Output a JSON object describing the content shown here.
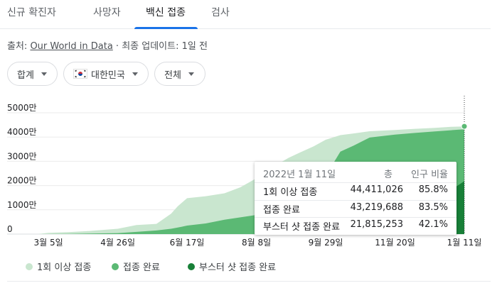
{
  "tabs": [
    {
      "label": "신규 확진자"
    },
    {
      "label": "사망자"
    },
    {
      "label": "백신 접종"
    },
    {
      "label": "검사"
    }
  ],
  "source": {
    "prefix": "출처: ",
    "link": "Our World in Data",
    "suffix": " · 최종 업데이트: 1일 전"
  },
  "filters": {
    "metric": "합계",
    "region": "대한민국",
    "range": "전체"
  },
  "colors": {
    "first_dose": "#c9e6cf",
    "fully": "#5bb974",
    "booster": "#188038",
    "accent": "#1a73e8"
  },
  "chart_data": {
    "type": "area",
    "x": [
      "2021-02-26",
      "2021-03-05",
      "2021-03-20",
      "2021-04-05",
      "2021-04-26",
      "2021-05-10",
      "2021-05-25",
      "2021-06-05",
      "2021-06-10",
      "2021-06-17",
      "2021-07-01",
      "2021-07-15",
      "2021-07-27",
      "2021-08-08",
      "2021-08-20",
      "2021-09-01",
      "2021-09-10",
      "2021-09-20",
      "2021-09-29",
      "2021-10-10",
      "2021-10-20",
      "2021-11-01",
      "2021-11-20",
      "2021-12-05",
      "2021-12-20",
      "2022-01-01",
      "2022-01-11"
    ],
    "series": [
      {
        "name": "1회 이상 접종",
        "values": [
          0.1,
          0.5,
          0.8,
          1.3,
          2.2,
          3.7,
          4.2,
          8.4,
          11.5,
          14.8,
          15.6,
          16.8,
          19.3,
          23.0,
          27.5,
          31.4,
          33.7,
          36.2,
          38.9,
          40.8,
          41.5,
          42.4,
          42.9,
          43.4,
          43.8,
          44.2,
          44.4
        ]
      },
      {
        "name": "접종 완료",
        "values": [
          0.0,
          0.0,
          0.1,
          0.2,
          0.4,
          0.9,
          1.5,
          2.2,
          2.7,
          3.5,
          4.4,
          5.9,
          6.9,
          7.9,
          9.4,
          11.1,
          13.5,
          18.0,
          24.0,
          34.0,
          36.5,
          39.8,
          41.0,
          41.7,
          42.3,
          42.8,
          43.2
        ]
      },
      {
        "name": "부스터 샷 접종 완료",
        "values": [
          0,
          0,
          0,
          0,
          0,
          0,
          0,
          0,
          0,
          0,
          0,
          0,
          0,
          0,
          0,
          0,
          0,
          0,
          0,
          0,
          0.6,
          1.2,
          3.5,
          7.5,
          13.0,
          18.2,
          21.8
        ]
      }
    ],
    "y_unit": "만 명",
    "ylim": [
      0,
      5000
    ],
    "yticks": [
      "0",
      "1000만",
      "2000만",
      "3000만",
      "4000만",
      "5000만"
    ],
    "xticks": [
      "3월 5일",
      "4월 26일",
      "6월 17일",
      "8월 8일",
      "9월 29일",
      "11월 20일",
      "1월 11일"
    ],
    "grid": true,
    "legend": "bottom-left"
  },
  "tooltip": {
    "date": "2022년 1월 11일",
    "col_total": "총",
    "col_pct": "인구 비율",
    "rows": [
      {
        "label": "1회 이상 접종",
        "total": "44,411,026",
        "pct": "85.8%"
      },
      {
        "label": "접종 완료",
        "total": "43,219,688",
        "pct": "83.5%"
      },
      {
        "label": "부스터 샷 접종 완료",
        "total": "21,815,253",
        "pct": "42.1%"
      }
    ]
  },
  "legend": [
    {
      "label": "1회 이상 접종"
    },
    {
      "label": "접종 완료"
    },
    {
      "label": "부스터 샷 접종 완료"
    }
  ]
}
